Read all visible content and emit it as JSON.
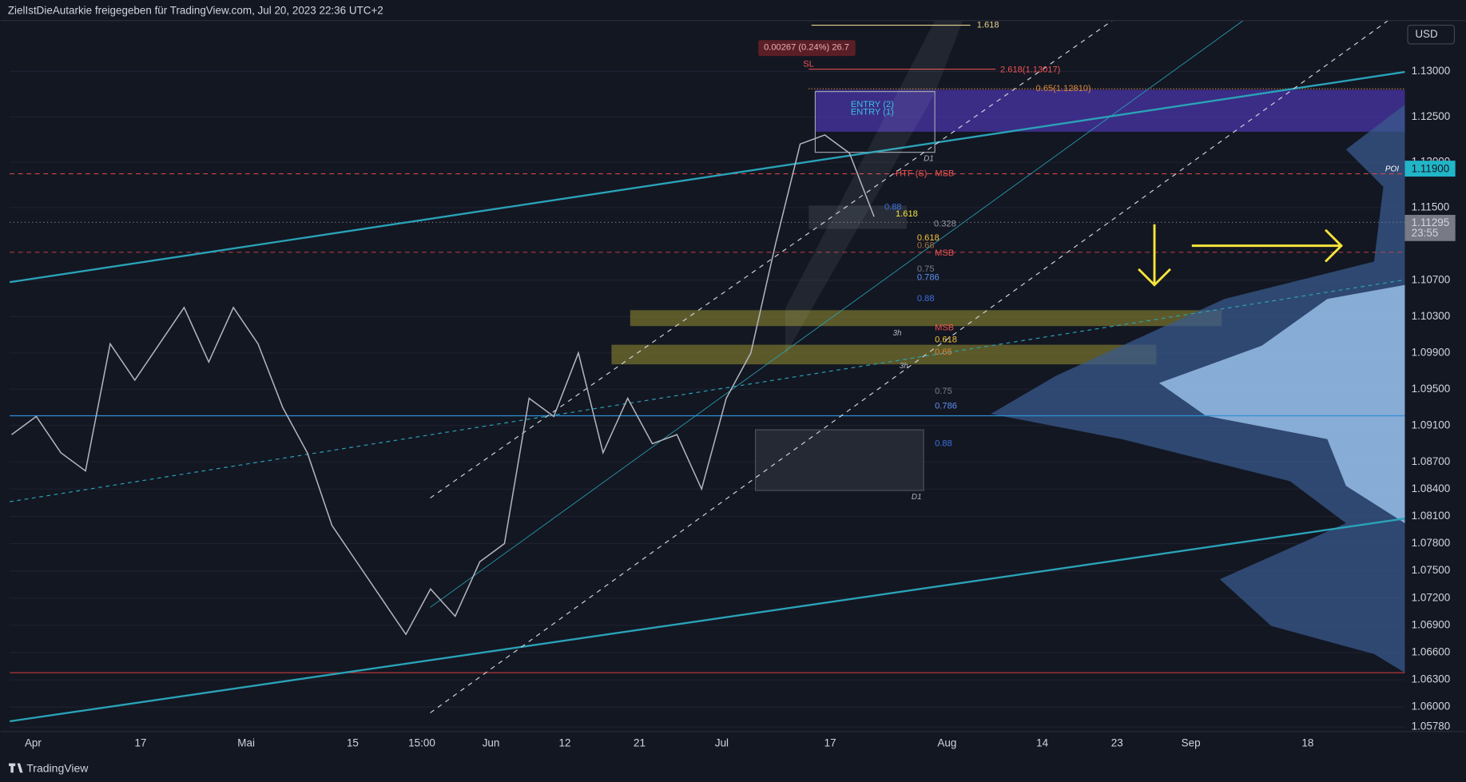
{
  "header": {
    "title": "ZielIstDieAutarkie freigegeben für TradingView.com, Jul 20, 2023 22:36 UTC+2"
  },
  "chart_data": {
    "type": "line",
    "currency": "USD",
    "series": [
      {
        "color": "#b2b5be",
        "values": [
          1.09,
          1.092,
          1.088,
          1.086,
          1.1,
          1.096,
          1.1,
          1.104,
          1.098,
          1.104,
          1.1,
          1.093,
          1.088,
          1.08,
          1.076,
          1.072,
          1.068,
          1.073,
          1.07,
          1.076,
          1.078,
          1.094,
          1.092,
          1.099,
          1.088,
          1.094,
          1.089,
          1.09,
          1.084,
          1.094,
          1.099,
          1.111,
          1.122,
          1.123,
          1.121,
          1.114
        ]
      }
    ],
    "ylim": [
      1.0573,
      1.1356
    ],
    "yticks": [
      {
        "value": 1.13,
        "label": "1.13000"
      },
      {
        "value": 1.125,
        "label": "1.12500"
      },
      {
        "value": 1.12,
        "label": "1.12000"
      },
      {
        "value": 1.115,
        "label": "1.11500"
      },
      {
        "value": 1.107,
        "label": "1.10700"
      },
      {
        "value": 1.103,
        "label": "1.10300"
      },
      {
        "value": 1.099,
        "label": "1.09900"
      },
      {
        "value": 1.095,
        "label": "1.09500"
      },
      {
        "value": 1.091,
        "label": "1.09100"
      },
      {
        "value": 1.087,
        "label": "1.08700"
      },
      {
        "value": 1.084,
        "label": "1.08400"
      },
      {
        "value": 1.081,
        "label": "1.08100"
      },
      {
        "value": 1.078,
        "label": "1.07800"
      },
      {
        "value": 1.075,
        "label": "1.07500"
      },
      {
        "value": 1.072,
        "label": "1.07200"
      },
      {
        "value": 1.069,
        "label": "1.06900"
      },
      {
        "value": 1.066,
        "label": "1.06600"
      },
      {
        "value": 1.063,
        "label": "1.06300"
      },
      {
        "value": 1.06,
        "label": "1.06000"
      },
      {
        "value": 1.0578,
        "label": "1.05780"
      }
    ],
    "grid": true,
    "time_labels": [
      "Apr",
      "17",
      "Mai",
      "15",
      "15:00",
      "Jun",
      "12",
      "21",
      "Jul",
      "17",
      "Aug",
      "14",
      "23",
      "Sep",
      "18"
    ],
    "annotations": [
      "1.618",
      "0.00267 (0.24%) 26.7",
      "SL",
      "2.618(1.13017)",
      "0.65(1.12810)",
      "ENTRY (2)",
      "ENTRY (1)",
      "D1",
      "HTF (S) - MSB",
      "0.88",
      "1.618",
      "0.328",
      "0.618",
      "0.68",
      "MSB",
      "0.75",
      "0.786",
      "0.88",
      "3h",
      "MSB",
      "0.618",
      "0.65",
      "3h",
      "0.75",
      "0.786",
      "0.88",
      "D1"
    ],
    "price_labels": {
      "poi": "POI",
      "level": "1.11900",
      "last": "1.11295",
      "countdown": "23:55"
    }
  },
  "footer": {
    "brand": "TradingView"
  }
}
